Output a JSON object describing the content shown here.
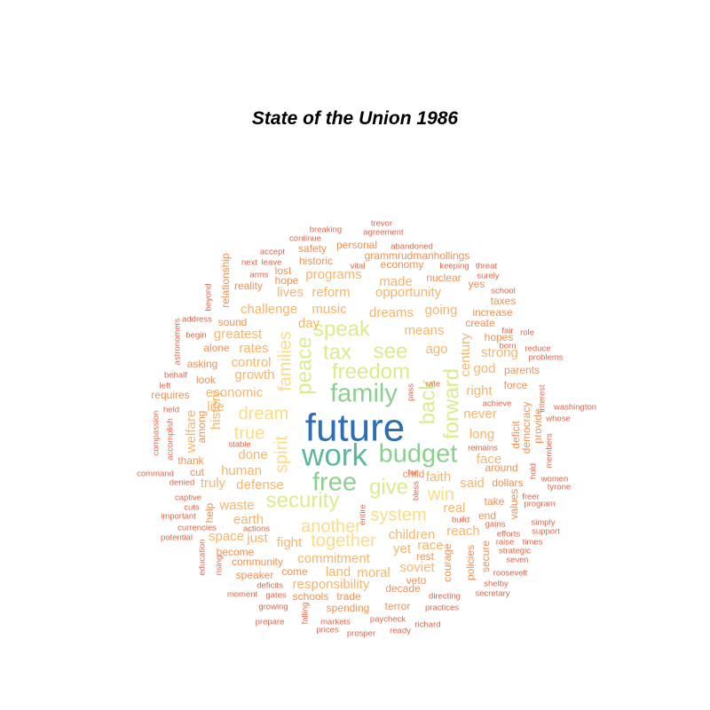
{
  "title": "State of the Union 1986",
  "chart_data": {
    "type": "wordcloud",
    "title": "State of the Union 1986",
    "palette": {
      "tier1": "#2c6fb5",
      "tier2": "#5bb89a",
      "tier3": "#8ccf8f",
      "tier4": "#d9ec8c",
      "tier5": "#fbdc84",
      "tier6": "#f6b56c",
      "tier7": "#ee9156",
      "tier8": "#e06549"
    },
    "words": [
      {
        "text": "future",
        "tier": 1
      },
      {
        "text": "work",
        "tier": 2
      },
      {
        "text": "family",
        "tier": 3
      },
      {
        "text": "budget",
        "tier": 3
      },
      {
        "text": "free",
        "tier": 3
      },
      {
        "text": "freedom",
        "tier": 4
      },
      {
        "text": "peace",
        "tier": 4
      },
      {
        "text": "speak",
        "tier": 4
      },
      {
        "text": "tax",
        "tier": 4
      },
      {
        "text": "see",
        "tier": 4
      },
      {
        "text": "back",
        "tier": 4
      },
      {
        "text": "give",
        "tier": 4
      },
      {
        "text": "security",
        "tier": 4
      },
      {
        "text": "forward",
        "tier": 4
      },
      {
        "text": "families",
        "tier": 5
      },
      {
        "text": "spirit",
        "tier": 5
      },
      {
        "text": "dream",
        "tier": 5
      },
      {
        "text": "true",
        "tier": 5
      },
      {
        "text": "win",
        "tier": 5
      },
      {
        "text": "another",
        "tier": 5
      },
      {
        "text": "together",
        "tier": 5
      },
      {
        "text": "system",
        "tier": 5
      },
      {
        "text": "opportunity",
        "tier": 6
      },
      {
        "text": "reform",
        "tier": 6
      },
      {
        "text": "dreams",
        "tier": 6
      },
      {
        "text": "means",
        "tier": 6
      },
      {
        "text": "ago",
        "tier": 6
      },
      {
        "text": "music",
        "tier": 6
      },
      {
        "text": "day",
        "tier": 6
      },
      {
        "text": "made",
        "tier": 6
      },
      {
        "text": "going",
        "tier": 6
      },
      {
        "text": "programs",
        "tier": 6
      },
      {
        "text": "lives",
        "tier": 6
      },
      {
        "text": "challenge",
        "tier": 6
      },
      {
        "text": "greatest",
        "tier": 6
      },
      {
        "text": "rates",
        "tier": 6
      },
      {
        "text": "growth",
        "tier": 6
      },
      {
        "text": "economic",
        "tier": 6
      },
      {
        "text": "control",
        "tier": 6
      },
      {
        "text": "done",
        "tier": 6
      },
      {
        "text": "human",
        "tier": 6
      },
      {
        "text": "defense",
        "tier": 6
      },
      {
        "text": "waste",
        "tier": 6
      },
      {
        "text": "earth",
        "tier": 6
      },
      {
        "text": "faith",
        "tier": 6
      },
      {
        "text": "said",
        "tier": 6
      },
      {
        "text": "real",
        "tier": 6
      },
      {
        "text": "reach",
        "tier": 6
      },
      {
        "text": "children",
        "tier": 6
      },
      {
        "text": "yet",
        "tier": 6
      },
      {
        "text": "race",
        "tier": 6
      },
      {
        "text": "commitment",
        "tier": 6
      },
      {
        "text": "responsibility",
        "tier": 6
      },
      {
        "text": "moral",
        "tier": 6
      },
      {
        "text": "land",
        "tier": 6
      },
      {
        "text": "soviet",
        "tier": 6
      },
      {
        "text": "century",
        "tier": 6
      },
      {
        "text": "long",
        "tier": 6
      },
      {
        "text": "never",
        "tier": 6
      },
      {
        "text": "right",
        "tier": 6
      },
      {
        "text": "strong",
        "tier": 6
      },
      {
        "text": "god",
        "tier": 6
      },
      {
        "text": "face",
        "tier": 6
      },
      {
        "text": "history",
        "tier": 6
      },
      {
        "text": "welfare",
        "tier": 6
      },
      {
        "text": "life",
        "tier": 6
      },
      {
        "text": "truly",
        "tier": 6
      },
      {
        "text": "fight",
        "tier": 6
      },
      {
        "text": "just",
        "tier": 6
      },
      {
        "text": "space",
        "tier": 6
      },
      {
        "text": "nuclear",
        "tier": 7
      },
      {
        "text": "economy",
        "tier": 7
      },
      {
        "text": "grammrudmanhollings",
        "tier": 7
      },
      {
        "text": "personal",
        "tier": 7
      },
      {
        "text": "safety",
        "tier": 7
      },
      {
        "text": "historic",
        "tier": 7
      },
      {
        "text": "lost",
        "tier": 7
      },
      {
        "text": "hope",
        "tier": 7
      },
      {
        "text": "reality",
        "tier": 7
      },
      {
        "text": "relationship",
        "tier": 7
      },
      {
        "text": "sound",
        "tier": 7
      },
      {
        "text": "alone",
        "tier": 7
      },
      {
        "text": "asking",
        "tier": 7
      },
      {
        "text": "look",
        "tier": 7
      },
      {
        "text": "requires",
        "tier": 7
      },
      {
        "text": "among",
        "tier": 7
      },
      {
        "text": "thank",
        "tier": 7
      },
      {
        "text": "cut",
        "tier": 7
      },
      {
        "text": "help",
        "tier": 7
      },
      {
        "text": "become",
        "tier": 7
      },
      {
        "text": "community",
        "tier": 7
      },
      {
        "text": "speaker",
        "tier": 7
      },
      {
        "text": "come",
        "tier": 7
      },
      {
        "text": "schools",
        "tier": 7
      },
      {
        "text": "trade",
        "tier": 7
      },
      {
        "text": "spending",
        "tier": 7
      },
      {
        "text": "terror",
        "tier": 7
      },
      {
        "text": "decade",
        "tier": 7
      },
      {
        "text": "veto",
        "tier": 7
      },
      {
        "text": "rest",
        "tier": 7
      },
      {
        "text": "courage",
        "tier": 7
      },
      {
        "text": "policies",
        "tier": 7
      },
      {
        "text": "secure",
        "tier": 7
      },
      {
        "text": "end",
        "tier": 7
      },
      {
        "text": "take",
        "tier": 7
      },
      {
        "text": "values",
        "tier": 7
      },
      {
        "text": "dollars",
        "tier": 7
      },
      {
        "text": "around",
        "tier": 7
      },
      {
        "text": "deficit",
        "tier": 7
      },
      {
        "text": "democracy",
        "tier": 7
      },
      {
        "text": "provide",
        "tier": 7
      },
      {
        "text": "force",
        "tier": 7
      },
      {
        "text": "parents",
        "tier": 7
      },
      {
        "text": "hopes",
        "tier": 7
      },
      {
        "text": "create",
        "tier": 7
      },
      {
        "text": "increase",
        "tier": 7
      },
      {
        "text": "taxes",
        "tier": 7
      },
      {
        "text": "yes",
        "tier": 7
      },
      {
        "text": "child",
        "tier": 7
      },
      {
        "text": "trevor",
        "tier": 8
      },
      {
        "text": "agreement",
        "tier": 8
      },
      {
        "text": "breaking",
        "tier": 8
      },
      {
        "text": "continue",
        "tier": 8
      },
      {
        "text": "abandoned",
        "tier": 8
      },
      {
        "text": "accept",
        "tier": 8
      },
      {
        "text": "next",
        "tier": 8
      },
      {
        "text": "leave",
        "tier": 8
      },
      {
        "text": "vital",
        "tier": 8
      },
      {
        "text": "keeping",
        "tier": 8
      },
      {
        "text": "threat",
        "tier": 8
      },
      {
        "text": "surely",
        "tier": 8
      },
      {
        "text": "arms",
        "tier": 8
      },
      {
        "text": "school",
        "tier": 8
      },
      {
        "text": "beyond",
        "tier": 8
      },
      {
        "text": "address",
        "tier": 8
      },
      {
        "text": "begin",
        "tier": 8
      },
      {
        "text": "astronomers",
        "tier": 8
      },
      {
        "text": "behalf",
        "tier": 8
      },
      {
        "text": "left",
        "tier": 8
      },
      {
        "text": "held",
        "tier": 8
      },
      {
        "text": "compassion",
        "tier": 8
      },
      {
        "text": "accomplish",
        "tier": 8
      },
      {
        "text": "denied",
        "tier": 8
      },
      {
        "text": "command",
        "tier": 8
      },
      {
        "text": "stable",
        "tier": 8
      },
      {
        "text": "captive",
        "tier": 8
      },
      {
        "text": "cuts",
        "tier": 8
      },
      {
        "text": "important",
        "tier": 8
      },
      {
        "text": "currencies",
        "tier": 8
      },
      {
        "text": "potential",
        "tier": 8
      },
      {
        "text": "actions",
        "tier": 8
      },
      {
        "text": "education",
        "tier": 8
      },
      {
        "text": "rising",
        "tier": 8
      },
      {
        "text": "deficits",
        "tier": 8
      },
      {
        "text": "moment",
        "tier": 8
      },
      {
        "text": "gates",
        "tier": 8
      },
      {
        "text": "growing",
        "tier": 8
      },
      {
        "text": "prepare",
        "tier": 8
      },
      {
        "text": "falling",
        "tier": 8
      },
      {
        "text": "markets",
        "tier": 8
      },
      {
        "text": "prices",
        "tier": 8
      },
      {
        "text": "prosper",
        "tier": 8
      },
      {
        "text": "paycheck",
        "tier": 8
      },
      {
        "text": "ready",
        "tier": 8
      },
      {
        "text": "richard",
        "tier": 8
      },
      {
        "text": "practices",
        "tier": 8
      },
      {
        "text": "directing",
        "tier": 8
      },
      {
        "text": "secretary",
        "tier": 8
      },
      {
        "text": "shelby",
        "tier": 8
      },
      {
        "text": "roosevelt",
        "tier": 8
      },
      {
        "text": "seven",
        "tier": 8
      },
      {
        "text": "strategic",
        "tier": 8
      },
      {
        "text": "raise",
        "tier": 8
      },
      {
        "text": "times",
        "tier": 8
      },
      {
        "text": "efforts",
        "tier": 8
      },
      {
        "text": "gains",
        "tier": 8
      },
      {
        "text": "build",
        "tier": 8
      },
      {
        "text": "support",
        "tier": 8
      },
      {
        "text": "simply",
        "tier": 8
      },
      {
        "text": "program",
        "tier": 8
      },
      {
        "text": "freer",
        "tier": 8
      },
      {
        "text": "tyrone",
        "tier": 8
      },
      {
        "text": "members",
        "tier": 8
      },
      {
        "text": "hold",
        "tier": 8
      },
      {
        "text": "remains",
        "tier": 8
      },
      {
        "text": "women",
        "tier": 8
      },
      {
        "text": "washington",
        "tier": 8
      },
      {
        "text": "whose",
        "tier": 8
      },
      {
        "text": "interest",
        "tier": 8
      },
      {
        "text": "born",
        "tier": 8
      },
      {
        "text": "achieve",
        "tier": 8
      },
      {
        "text": "fair",
        "tier": 8
      },
      {
        "text": "role",
        "tier": 8
      },
      {
        "text": "reduce",
        "tier": 8
      },
      {
        "text": "problems",
        "tier": 8
      },
      {
        "text": "rate",
        "tier": 8
      },
      {
        "text": "pass",
        "tier": 8
      },
      {
        "text": "bless",
        "tier": 8
      },
      {
        "text": "far",
        "tier": 8
      },
      {
        "text": "entire",
        "tier": 8
      }
    ]
  }
}
